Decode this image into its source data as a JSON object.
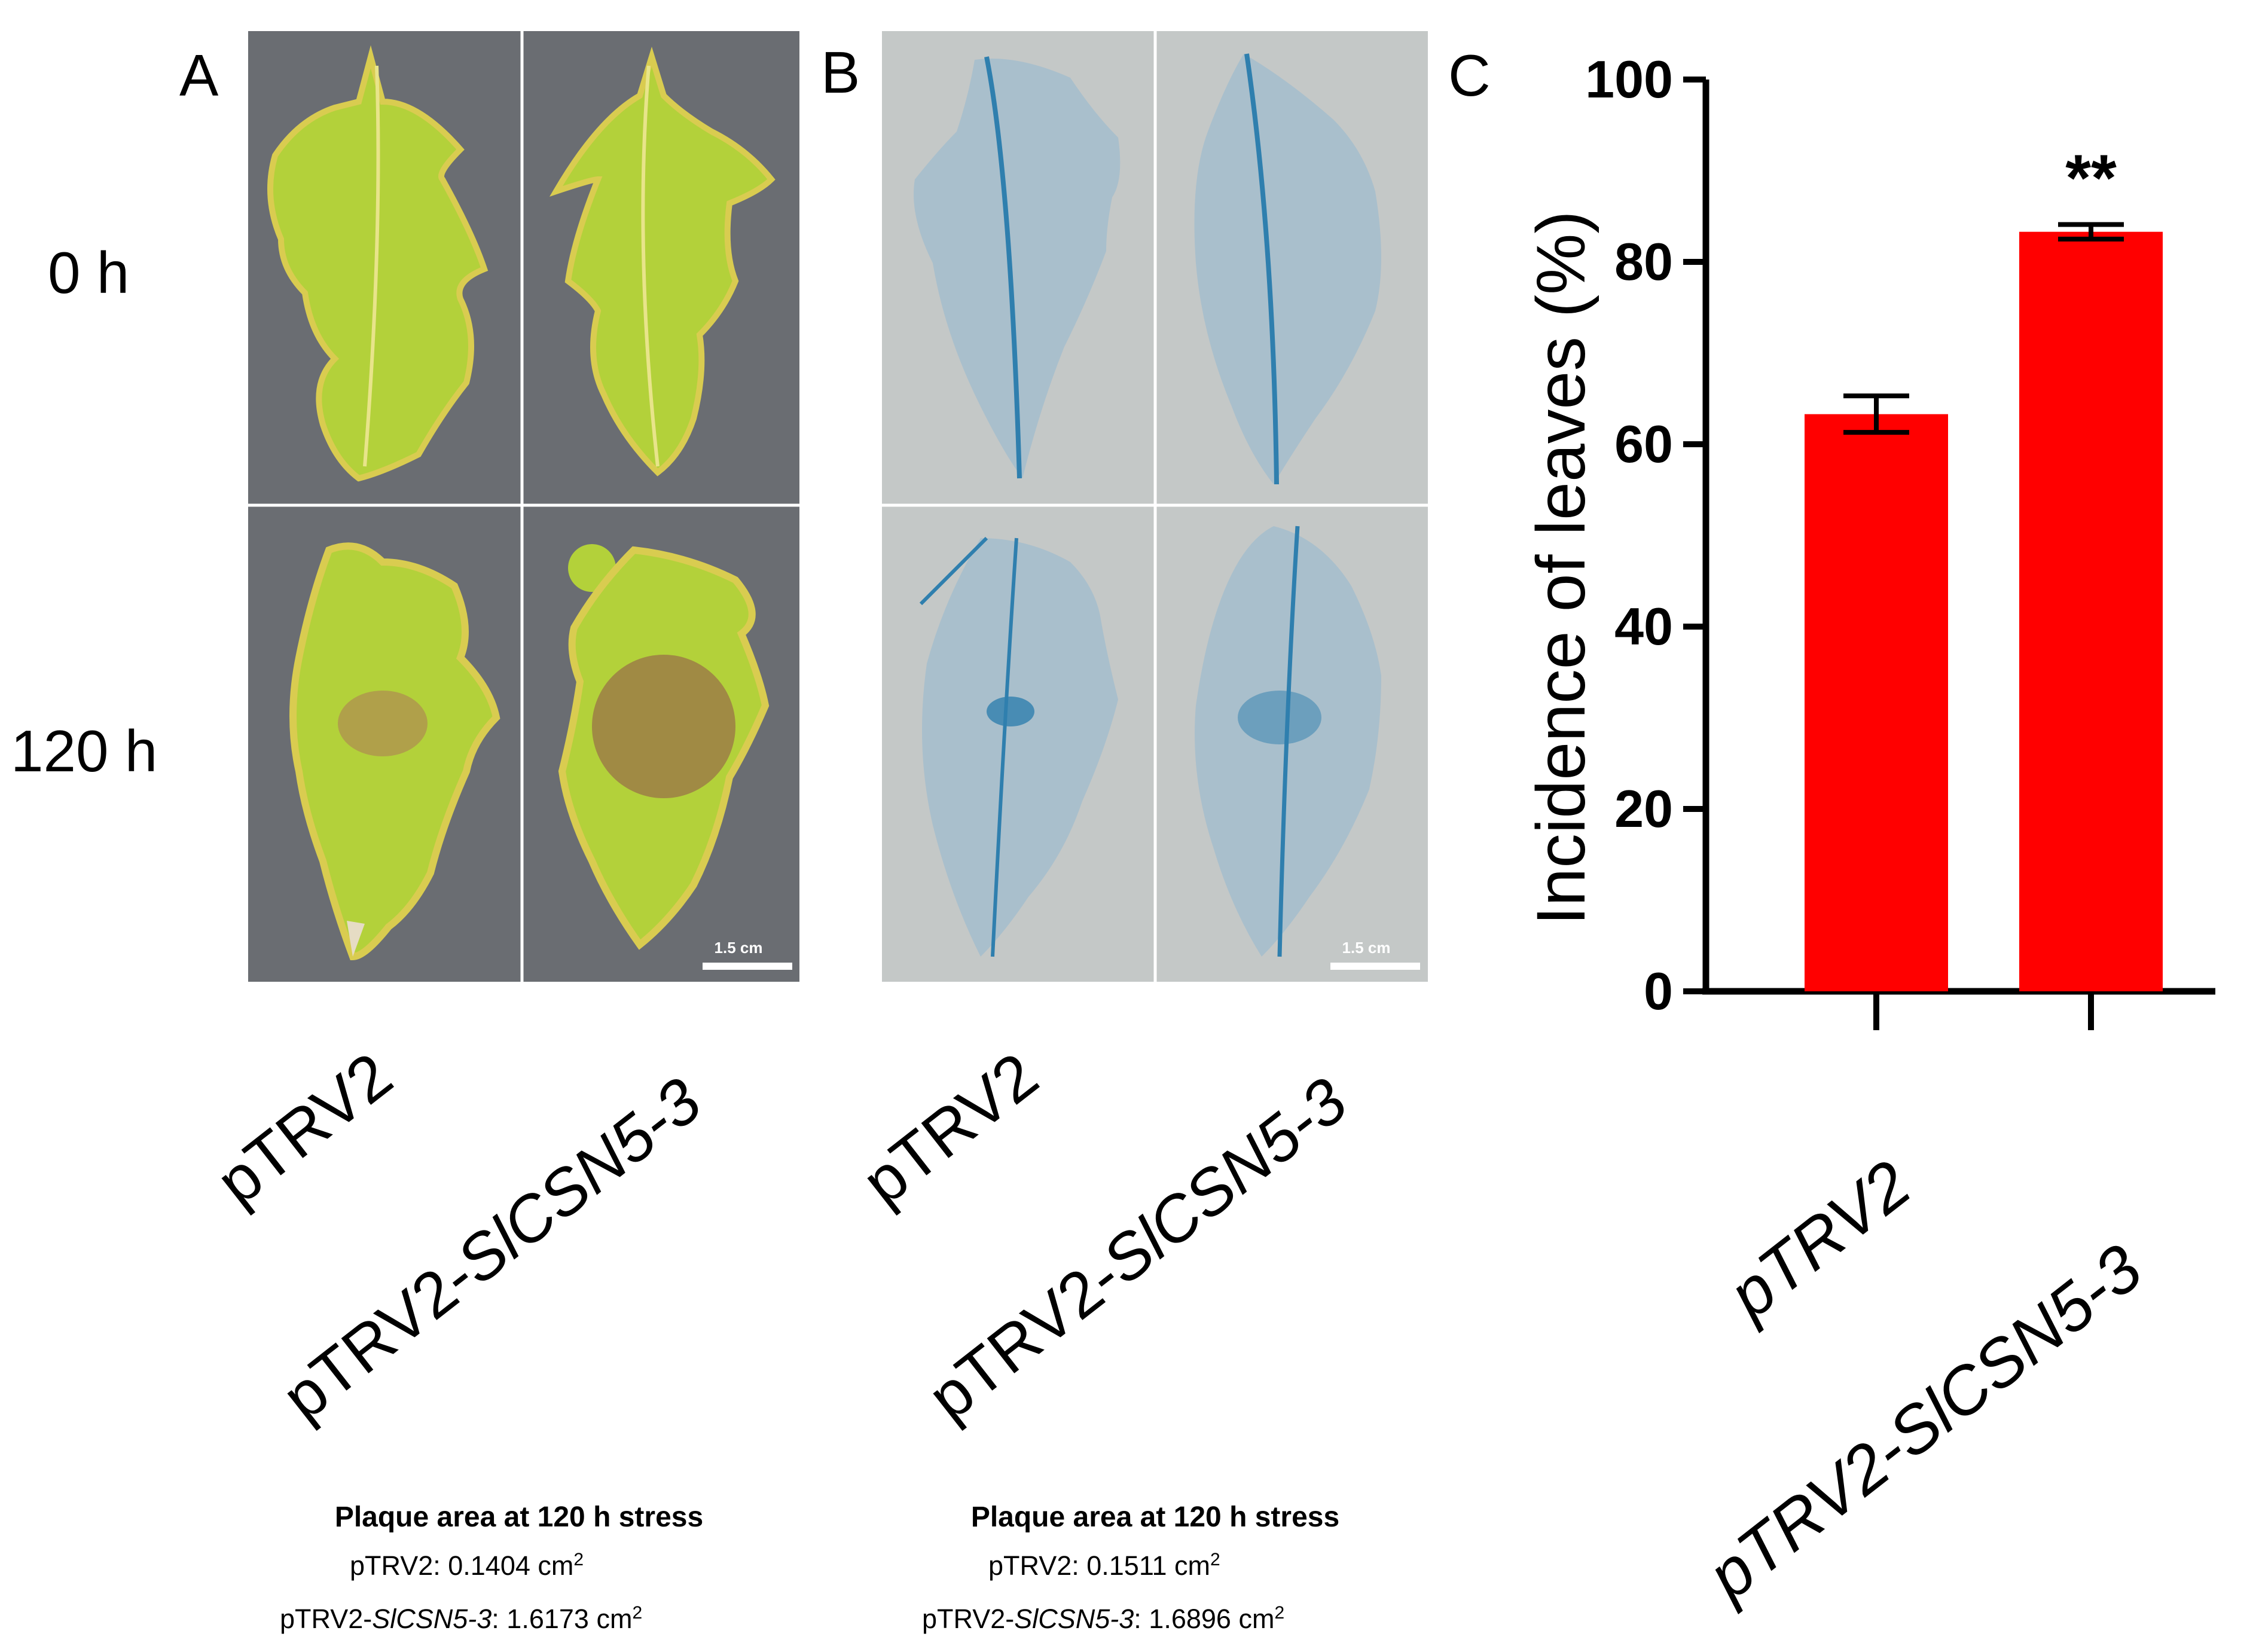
{
  "panels": {
    "A": {
      "label": "A",
      "row_labels": [
        "0 h",
        "120 h"
      ],
      "scale_bar": "1.5 cm",
      "x_labels": [
        {
          "text": "pTRV2"
        },
        {
          "text": "pTRV2-",
          "ital": "SlCSN5-3"
        }
      ],
      "caption": {
        "title": "Plaque area at 120 h stress",
        "line1_name": "pTRV2",
        "line1_value": ": 0.1404 cm",
        "line2_name": "pTRV2-",
        "line2_ital": "SlCSN5-3",
        "line2_value": ": 1.6173 cm",
        "sup": "2"
      },
      "colors": {
        "background": "#6a6d72",
        "leaf": "#b3d13a",
        "leaf_edge": "#d9cc50",
        "lesion": "#a08a44"
      }
    },
    "B": {
      "label": "B",
      "scale_bar": "1.5 cm",
      "x_labels": [
        {
          "text": "pTRV2"
        },
        {
          "text": "pTRV2-",
          "ital": "SlCSN5-3"
        }
      ],
      "caption": {
        "title": "Plaque area at 120 h stress",
        "line1_name": "pTRV2",
        "line1_value": ": 0.1511 cm",
        "line2_name": "pTRV2-",
        "line2_ital": "SlCSN5-3",
        "line2_value": ": 1.6896 cm",
        "sup": "2"
      },
      "colors": {
        "background": "#c4c8c7",
        "leaf": "#a9bfcc",
        "stain": "#2f7fae"
      }
    },
    "C": {
      "label": "C"
    }
  },
  "chart_data": {
    "type": "bar",
    "categories": [
      "pTRV2",
      "pTRV2-SlCSN5-3"
    ],
    "values": [
      63.3,
      83.3
    ],
    "errors": [
      2.0,
      0.8
    ],
    "significance": [
      "",
      "**"
    ],
    "ylabel": "Incidence of leaves (%)",
    "xlabel": "",
    "ylim": [
      0,
      100
    ],
    "yticks": [
      0,
      20,
      40,
      60,
      80,
      100
    ],
    "bar_color": "#ff0000",
    "grid": false
  }
}
